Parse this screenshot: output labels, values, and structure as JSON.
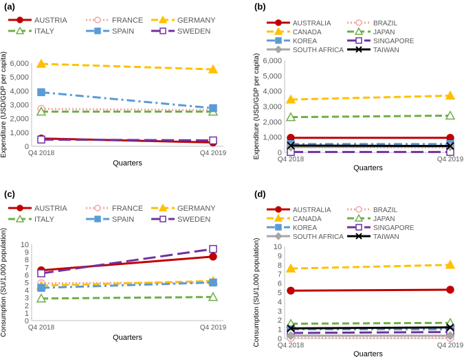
{
  "chart_data": [
    {
      "panel_label": "(a)",
      "type": "line",
      "title": "",
      "categories": [
        "Q4 2018",
        "Q4 2019"
      ],
      "xlabel": "Quarters",
      "ylabel": "Expenditure (USD/GDP per capita)",
      "ylim": [
        0,
        6000
      ],
      "yticks": [
        "0",
        "1,000",
        "2,000",
        "3,000",
        "4,000",
        "5,000",
        "6,000"
      ],
      "grid": false,
      "legend_position": "top",
      "series": [
        {
          "name": "AUSTRIA",
          "values": [
            560,
            270
          ],
          "color": "#C00000",
          "dash": "solid",
          "marker": "circle-filled"
        },
        {
          "name": "FRANCE",
          "values": [
            2700,
            2600
          ],
          "color": "#F4A6A6",
          "dash": "dot",
          "marker": "circle-open"
        },
        {
          "name": "GERMANY",
          "values": [
            5950,
            5550
          ],
          "color": "#FFC000",
          "dash": "dash",
          "marker": "triangle-filled"
        },
        {
          "name": "ITALY",
          "values": [
            2500,
            2500
          ],
          "color": "#70AD47",
          "dash": "dash",
          "marker": "triangle-open"
        },
        {
          "name": "SPAIN",
          "values": [
            3900,
            2750
          ],
          "color": "#5B9BD5",
          "dash": "dashdot",
          "marker": "square-filled"
        },
        {
          "name": "SWEDEN",
          "values": [
            480,
            420
          ],
          "color": "#7030A0",
          "dash": "longdash",
          "marker": "square-open"
        }
      ]
    },
    {
      "panel_label": "(b)",
      "type": "line",
      "title": "",
      "categories": [
        "Q4 2018",
        "Q4 2019"
      ],
      "xlabel": "Quarters",
      "ylabel": "Expenditure (USD/GDP per capita)",
      "ylim": [
        0,
        6000
      ],
      "yticks": [
        "0",
        "1,000",
        "2,000",
        "3,000",
        "4,000",
        "5,000",
        "6,000"
      ],
      "grid": false,
      "legend_position": "top",
      "series": [
        {
          "name": "AUSTRALIA",
          "values": [
            950,
            950
          ],
          "color": "#C00000",
          "dash": "solid",
          "marker": "circle-filled"
        },
        {
          "name": "BRAZIL",
          "values": [
            350,
            320
          ],
          "color": "#F4A6A6",
          "dash": "dot",
          "marker": "circle-open"
        },
        {
          "name": "CANADA",
          "values": [
            3450,
            3700
          ],
          "color": "#FFC000",
          "dash": "dash",
          "marker": "triangle-filled"
        },
        {
          "name": "JAPAN",
          "values": [
            2300,
            2400
          ],
          "color": "#70AD47",
          "dash": "dash",
          "marker": "triangle-open"
        },
        {
          "name": "KOREA",
          "values": [
            550,
            550
          ],
          "color": "#5B9BD5",
          "dash": "dashdot",
          "marker": "square-filled"
        },
        {
          "name": "SINGAPORE",
          "values": [
            30,
            30
          ],
          "color": "#7030A0",
          "dash": "longdash",
          "marker": "square-open"
        },
        {
          "name": "SOUTH AFRICA",
          "values": [
            350,
            380
          ],
          "color": "#A6A6A6",
          "dash": "solid",
          "marker": "diamond-filled"
        },
        {
          "name": "TAIWAN",
          "values": [
            450,
            420
          ],
          "color": "#000000",
          "dash": "solid",
          "marker": "x"
        }
      ]
    },
    {
      "panel_label": "(c)",
      "type": "line",
      "title": "",
      "categories": [
        "Q4 2018",
        "Q4 2019"
      ],
      "xlabel": "Quarters",
      "ylabel": "Consumption (SU/1,000 population)",
      "ylim": [
        0,
        10
      ],
      "yticks": [
        "0",
        "1",
        "2",
        "3",
        "4",
        "5",
        "6",
        "7",
        "8",
        "9",
        "10"
      ],
      "grid": false,
      "legend_position": "top",
      "series": [
        {
          "name": "AUSTRIA",
          "values": [
            6.6,
            8.4
          ],
          "color": "#C00000",
          "dash": "solid",
          "marker": "circle-filled"
        },
        {
          "name": "FRANCE",
          "values": [
            4.9,
            5.0
          ],
          "color": "#F4A6A6",
          "dash": "dot",
          "marker": "circle-open"
        },
        {
          "name": "GERMANY",
          "values": [
            4.6,
            5.2
          ],
          "color": "#FFC000",
          "dash": "dash",
          "marker": "triangle-filled"
        },
        {
          "name": "ITALY",
          "values": [
            2.9,
            3.1
          ],
          "color": "#70AD47",
          "dash": "dash",
          "marker": "triangle-open"
        },
        {
          "name": "SPAIN",
          "values": [
            4.3,
            5.0
          ],
          "color": "#5B9BD5",
          "dash": "dashdot",
          "marker": "square-filled"
        },
        {
          "name": "SWEDEN",
          "values": [
            6.2,
            9.4
          ],
          "color": "#7030A0",
          "dash": "longdash",
          "marker": "square-open"
        }
      ]
    },
    {
      "panel_label": "(d)",
      "type": "line",
      "title": "",
      "categories": [
        "Q4 2018",
        "Q4 2019"
      ],
      "xlabel": "Quarters",
      "ylabel": "Consumption (SU/1,000 population)",
      "ylim": [
        0,
        10
      ],
      "yticks": [
        "0",
        "1",
        "2",
        "3",
        "4",
        "5",
        "6",
        "7",
        "8",
        "9",
        "10"
      ],
      "grid": false,
      "legend_position": "top",
      "series": [
        {
          "name": "AUSTRALIA",
          "values": [
            5.2,
            5.3
          ],
          "color": "#C00000",
          "dash": "solid",
          "marker": "circle-filled"
        },
        {
          "name": "BRAZIL",
          "values": [
            0.05,
            0.05
          ],
          "color": "#F4A6A6",
          "dash": "dot",
          "marker": "circle-open"
        },
        {
          "name": "CANADA",
          "values": [
            7.6,
            8.0
          ],
          "color": "#FFC000",
          "dash": "dash",
          "marker": "triangle-filled"
        },
        {
          "name": "JAPAN",
          "values": [
            1.6,
            1.7
          ],
          "color": "#70AD47",
          "dash": "dash",
          "marker": "triangle-open"
        },
        {
          "name": "KOREA",
          "values": [
            1.0,
            1.0
          ],
          "color": "#5B9BD5",
          "dash": "dashdot",
          "marker": "square-filled"
        },
        {
          "name": "SINGAPORE",
          "values": [
            0.6,
            0.7
          ],
          "color": "#7030A0",
          "dash": "longdash",
          "marker": "square-open"
        },
        {
          "name": "SOUTH AFRICA",
          "values": [
            0.3,
            0.3
          ],
          "color": "#A6A6A6",
          "dash": "solid",
          "marker": "diamond-filled"
        },
        {
          "name": "TAIWAN",
          "values": [
            1.1,
            1.2
          ],
          "color": "#000000",
          "dash": "solid",
          "marker": "x"
        }
      ]
    }
  ]
}
